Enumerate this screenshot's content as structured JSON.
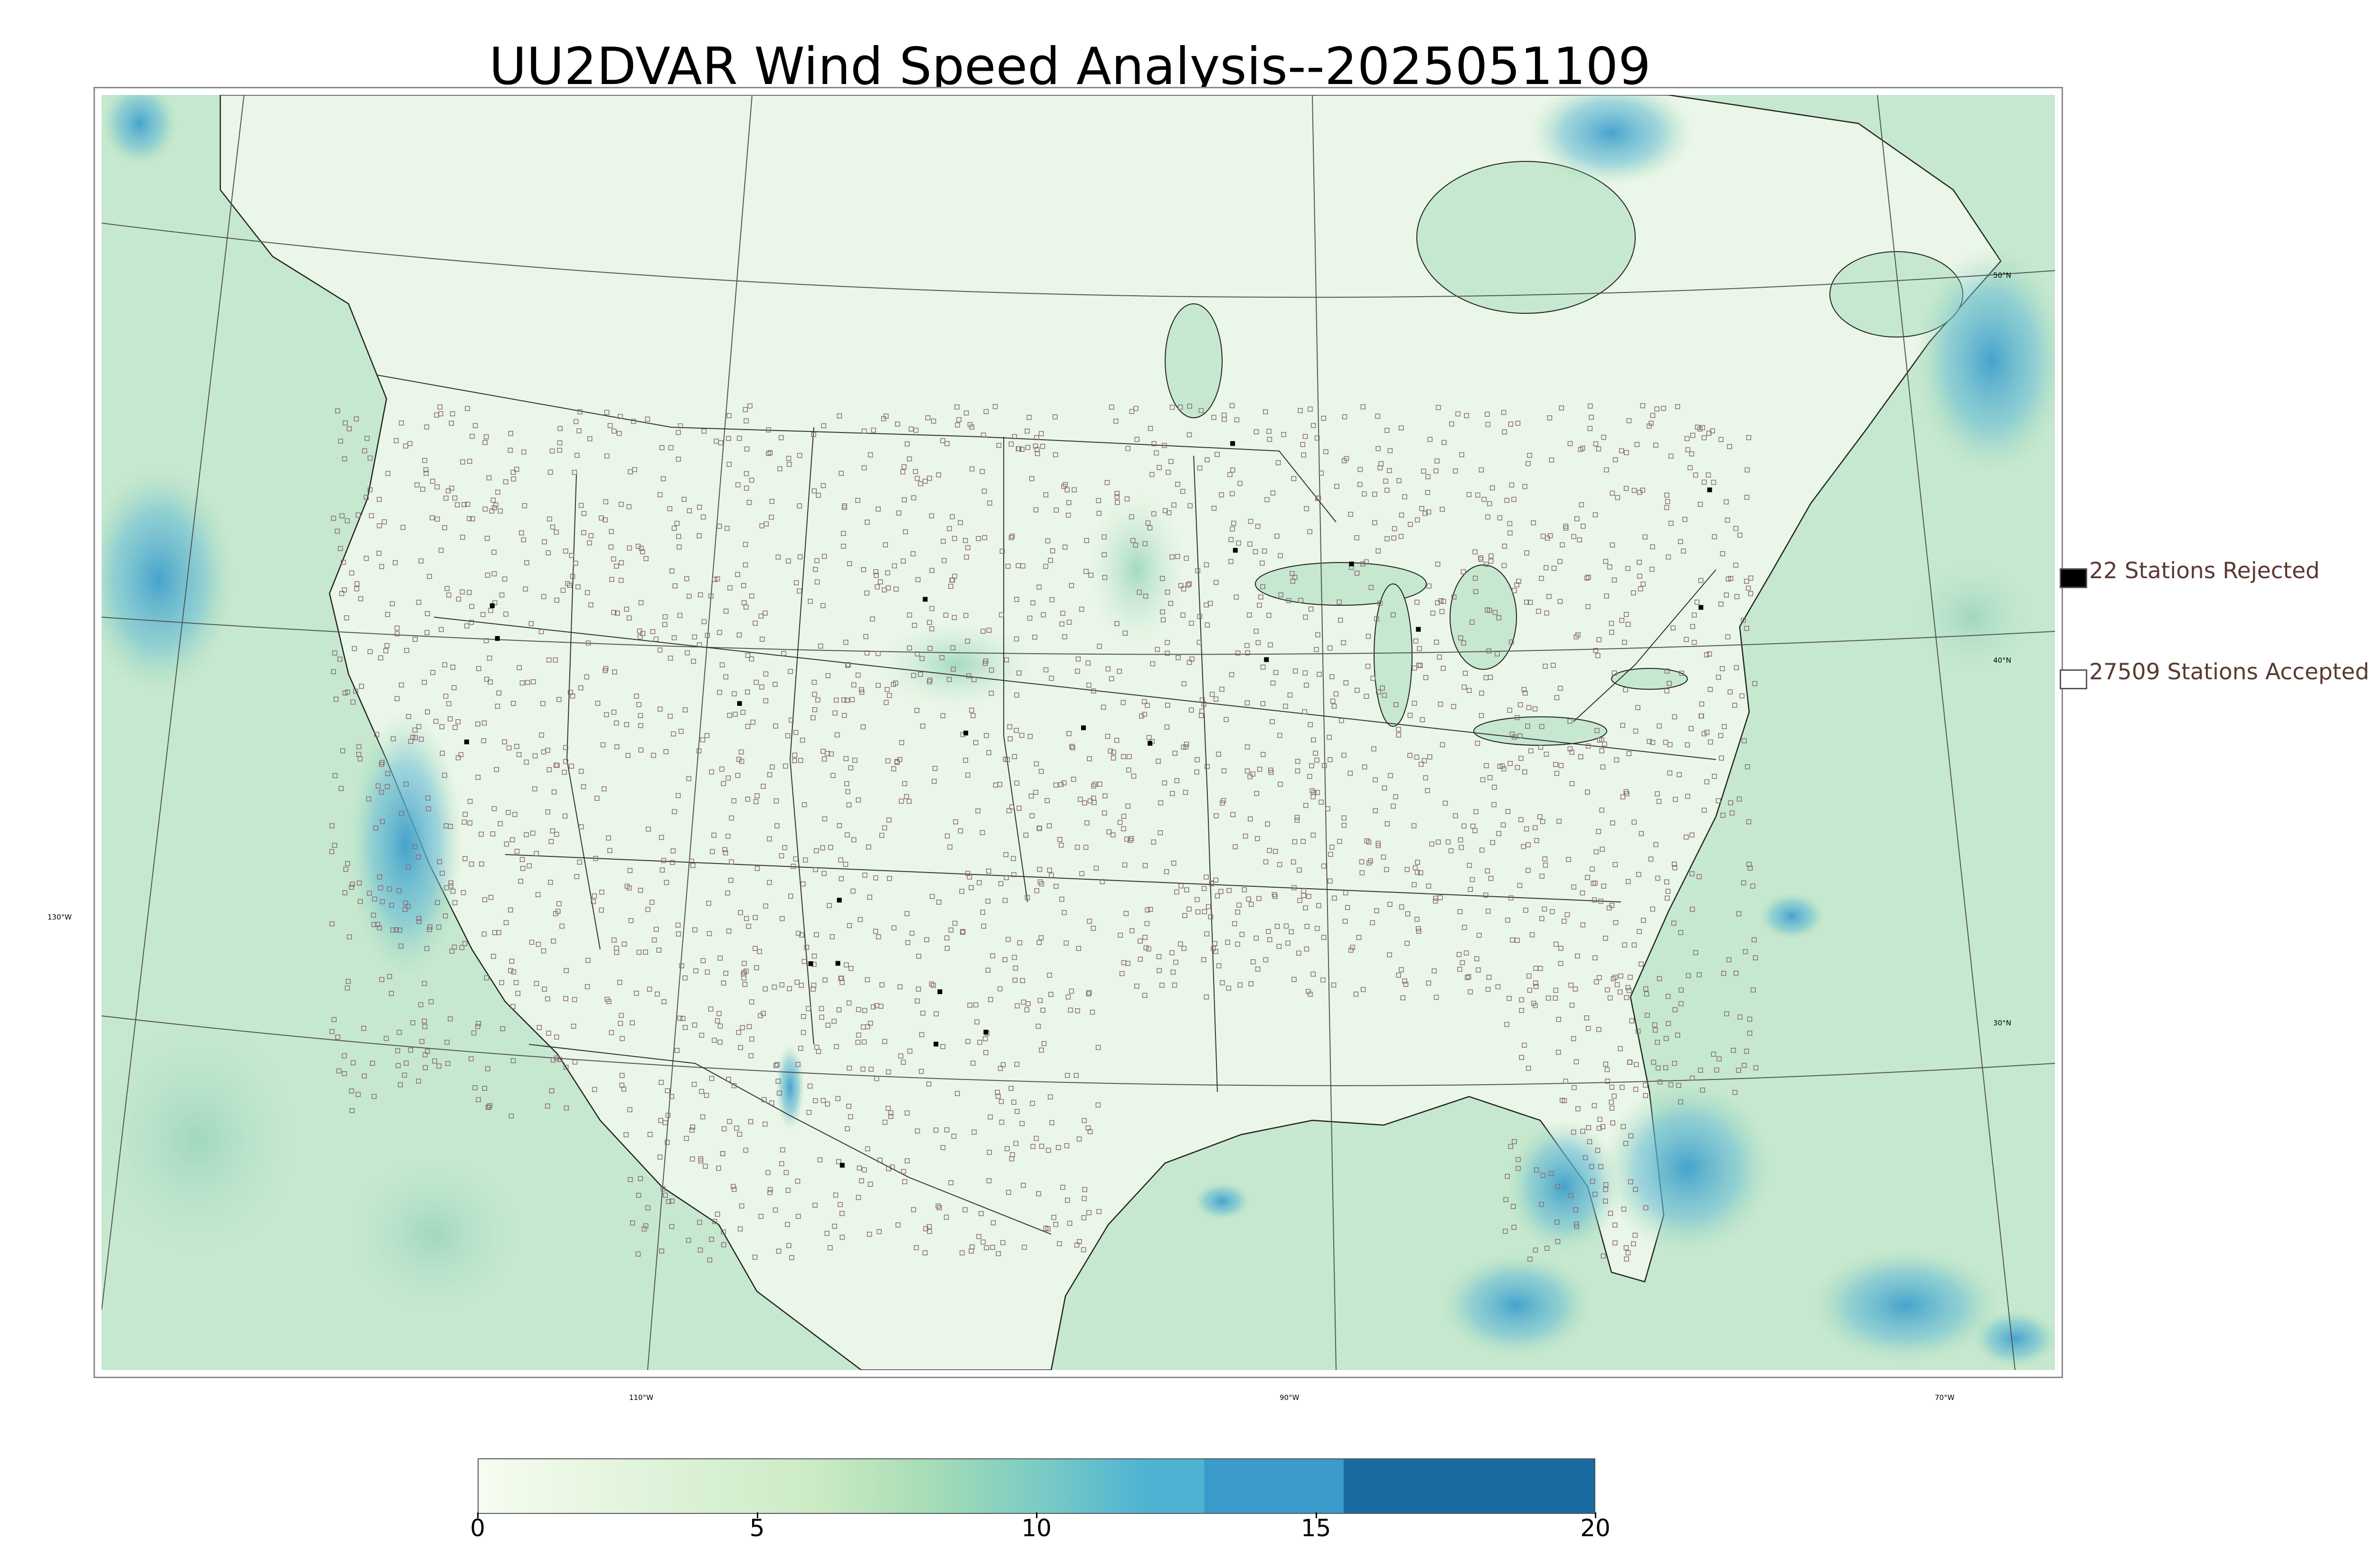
{
  "title": "UU2DVAR Wind Speed Analysis--2025051109",
  "map": {
    "lon_labels": [
      "130°W",
      "110°W",
      "90°W",
      "70°W"
    ],
    "lat_labels": [
      "50°N",
      "40°N",
      "30°N"
    ],
    "ocean_tint": "#c9ead3",
    "land_tint": "#e9f6e6",
    "station_accepted_color": "#8a6c7a",
    "station_rejected_color": "#000000"
  },
  "legend": {
    "rejected_label": "22 Stations Rejected",
    "accepted_label": "27509 Stations Accepted",
    "rejected_count": 22,
    "accepted_count": 27509
  },
  "colorbar": {
    "min": 0,
    "max": 20,
    "tick_labels": [
      "0",
      "5",
      "10",
      "15",
      "20"
    ],
    "stops": [
      {
        "value": 0,
        "color": "#f7fcf0"
      },
      {
        "value": 3,
        "color": "#e0f3db"
      },
      {
        "value": 6,
        "color": "#ccebc5"
      },
      {
        "value": 8,
        "color": "#a8ddb5"
      },
      {
        "value": 10,
        "color": "#7bccc4"
      },
      {
        "value": 12,
        "color": "#4eb3d3"
      },
      {
        "value": 13,
        "color": "#4eb3d3"
      },
      {
        "value": 13.01,
        "color": "#3b9ccc"
      },
      {
        "value": 15.5,
        "color": "#3b9ccc"
      },
      {
        "value": 15.51,
        "color": "#1a6aa2"
      },
      {
        "value": 20,
        "color": "#1a6aa2"
      }
    ]
  }
}
